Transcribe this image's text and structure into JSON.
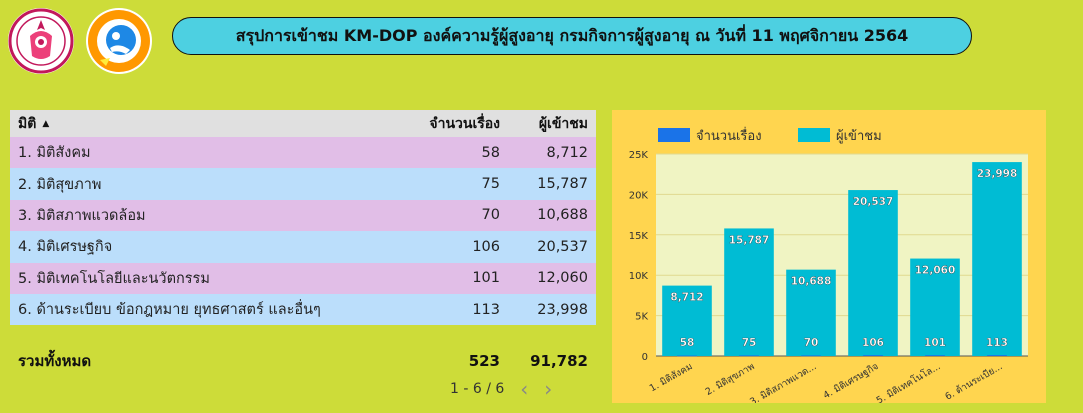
{
  "header": {
    "title": "สรุปการเข้าชม KM-DOP องค์ความรู้ผู้สูงอายุ กรมกิจการผู้สูงอายุ ณ วันที่ 11 พฤศจิกายน 2564"
  },
  "logos": [
    {
      "icon": "government-seal-logo"
    },
    {
      "icon": "elderly-department-logo"
    }
  ],
  "table": {
    "columns": {
      "name": "มิติ",
      "count": "จำนวนเรื่อง",
      "views": "ผู้เข้าชม"
    },
    "rows": [
      {
        "name": "1. มิติสังคม",
        "count": "58",
        "views": "8,712"
      },
      {
        "name": "2. มิติสุขภาพ",
        "count": "75",
        "views": "15,787"
      },
      {
        "name": "3. มิติสภาพแวดล้อม",
        "count": "70",
        "views": "10,688"
      },
      {
        "name": "4. มิติเศรษฐกิจ",
        "count": "106",
        "views": "20,537"
      },
      {
        "name": "5. มิติเทคโนโลยีและนวัตกรรม",
        "count": "101",
        "views": "12,060"
      },
      {
        "name": "6. ด้านระเบียบ ข้อกฎหมาย ยุทธศาสตร์ และอื่นๆ",
        "count": "113",
        "views": "23,998"
      }
    ],
    "total": {
      "label": "รวมทั้งหมด",
      "count": "523",
      "views": "91,782"
    },
    "pagination": {
      "text": "1 - 6 / 6",
      "prev_icon": "chevron-left-icon",
      "next_icon": "chevron-right-icon"
    }
  },
  "colors": {
    "background": "#cddc39",
    "title_pill": "#4dd0e1",
    "row_pink": "#e1bee7",
    "row_blue": "#bbdefb",
    "chart_panel": "#ffd54f",
    "chart_plot": "#f0f4c3",
    "series_count": "#1a73e8",
    "series_views": "#00bcd4"
  },
  "chart_data": {
    "type": "bar",
    "categories": [
      "1. มิติสังคม",
      "2. มิติสุขภาพ",
      "3. มิติสภาพแวดล้อม",
      "4. มิติเศรษฐกิจ",
      "5. มิติเทคโนโลยีและนวัตกรรม",
      "6. ด้านระเบียบ ข้อกฎหมาย ยุทธศาสตร์ และอื่นๆ"
    ],
    "category_labels": [
      "1. มิติสังคม",
      "2. มิติสุขภาพ",
      "3. มิติสภาพแวด...",
      "4. มิติเศรษฐกิจ",
      "5. มิติเทคโนโล...",
      "6. ด้านระเบีย..."
    ],
    "series": [
      {
        "name": "จำนวนเรื่อง",
        "values": [
          58,
          75,
          70,
          106,
          101,
          113
        ],
        "labels": [
          "58",
          "75",
          "70",
          "106",
          "101",
          "113"
        ]
      },
      {
        "name": "ผู้เข้าชม",
        "values": [
          8712,
          15787,
          10688,
          20537,
          12060,
          23998
        ],
        "labels": [
          "8,712",
          "15,787",
          "10,688",
          "20,537",
          "12,060",
          "23,998"
        ]
      }
    ],
    "ylim": [
      0,
      25000
    ],
    "yticks": [
      0,
      5000,
      10000,
      15000,
      20000,
      25000
    ],
    "ytick_labels": [
      "0",
      "5K",
      "10K",
      "15K",
      "20K",
      "25K"
    ],
    "legend": "top-left",
    "grid": true
  }
}
